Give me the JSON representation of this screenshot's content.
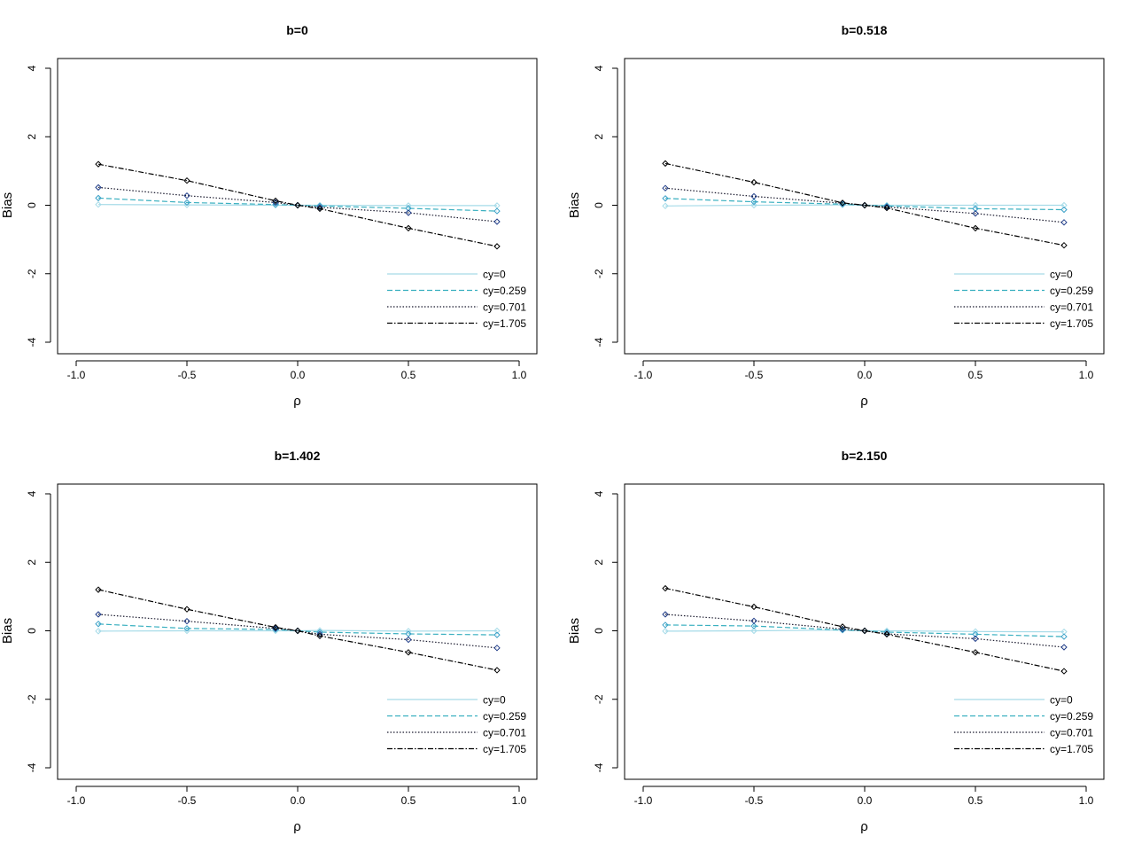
{
  "colors": {
    "cy0": "#a6dbe8",
    "cy0_259": "#3ab0c0",
    "cy0_701": "#1a1a2e",
    "cy1_705": "#000000",
    "axis": "#000000"
  },
  "chart_data": [
    {
      "type": "line",
      "title": "b=0",
      "xlabel": "ρ",
      "ylabel": "Bias",
      "xlim": [
        -1.0,
        1.0
      ],
      "ylim": [
        -4,
        4
      ],
      "x_ticks": [
        "-1.0",
        "-0.5",
        "0.0",
        "0.5",
        "1.0"
      ],
      "y_ticks": [
        "-4",
        "-2",
        "0",
        "2",
        "4"
      ],
      "x": [
        -0.9,
        -0.5,
        -0.1,
        0,
        0.1,
        0.5,
        0.9
      ],
      "legend_position": "bottom-right",
      "series": [
        {
          "name": "cy=0",
          "values": [
            0.02,
            0.01,
            0.0,
            0.0,
            0.0,
            -0.01,
            -0.01
          ]
        },
        {
          "name": "cy=0.259",
          "values": [
            0.21,
            0.08,
            0.02,
            0.0,
            -0.02,
            -0.09,
            -0.17
          ]
        },
        {
          "name": "cy=0.701",
          "values": [
            0.52,
            0.28,
            0.08,
            0.0,
            -0.06,
            -0.22,
            -0.48
          ]
        },
        {
          "name": "cy=1.705",
          "values": [
            1.2,
            0.72,
            0.13,
            0.0,
            -0.1,
            -0.67,
            -1.2
          ]
        }
      ]
    },
    {
      "type": "line",
      "title": "b=0.518",
      "xlabel": "ρ",
      "ylabel": "Bias",
      "xlim": [
        -1.0,
        1.0
      ],
      "ylim": [
        -4,
        4
      ],
      "x_ticks": [
        "-1.0",
        "-0.5",
        "0.0",
        "0.5",
        "1.0"
      ],
      "y_ticks": [
        "-4",
        "-2",
        "0",
        "2",
        "4"
      ],
      "x": [
        -0.9,
        -0.5,
        -0.1,
        0,
        0.1,
        0.5,
        0.9
      ],
      "legend_position": "bottom-right",
      "series": [
        {
          "name": "cy=0",
          "values": [
            -0.02,
            0.0,
            0.01,
            0.0,
            0.0,
            0.0,
            0.0
          ]
        },
        {
          "name": "cy=0.259",
          "values": [
            0.2,
            0.1,
            0.03,
            0.0,
            -0.02,
            -0.1,
            -0.13
          ]
        },
        {
          "name": "cy=0.701",
          "values": [
            0.5,
            0.26,
            0.06,
            0.0,
            -0.05,
            -0.24,
            -0.5
          ]
        },
        {
          "name": "cy=1.705",
          "values": [
            1.22,
            0.67,
            0.07,
            0.0,
            -0.08,
            -0.67,
            -1.17
          ]
        }
      ]
    },
    {
      "type": "line",
      "title": "b=1.402",
      "xlabel": "ρ",
      "ylabel": "Bias",
      "xlim": [
        -1.0,
        1.0
      ],
      "ylim": [
        -4,
        4
      ],
      "x_ticks": [
        "-1.0",
        "-0.5",
        "0.0",
        "0.5",
        "1.0"
      ],
      "y_ticks": [
        "-4",
        "-2",
        "0",
        "2",
        "4"
      ],
      "x": [
        -0.9,
        -0.5,
        -0.1,
        0,
        0.1,
        0.5,
        0.9
      ],
      "legend_position": "bottom-right",
      "series": [
        {
          "name": "cy=0",
          "values": [
            -0.01,
            0.0,
            0.0,
            0.0,
            0.01,
            -0.01,
            0.0
          ]
        },
        {
          "name": "cy=0.259",
          "values": [
            0.2,
            0.07,
            0.04,
            0.0,
            -0.04,
            -0.09,
            -0.12
          ]
        },
        {
          "name": "cy=0.701",
          "values": [
            0.48,
            0.28,
            0.07,
            0.0,
            -0.1,
            -0.26,
            -0.5
          ]
        },
        {
          "name": "cy=1.705",
          "values": [
            1.2,
            0.63,
            0.1,
            0.0,
            -0.15,
            -0.63,
            -1.15
          ]
        }
      ]
    },
    {
      "type": "line",
      "title": "b=2.150",
      "xlabel": "ρ",
      "ylabel": "Bias",
      "xlim": [
        -1.0,
        1.0
      ],
      "ylim": [
        -4,
        4
      ],
      "x_ticks": [
        "-1.0",
        "-0.5",
        "0.0",
        "0.5",
        "1.0"
      ],
      "y_ticks": [
        "-4",
        "-2",
        "0",
        "2",
        "4"
      ],
      "x": [
        -0.9,
        -0.5,
        -0.1,
        0,
        0.1,
        0.5,
        0.9
      ],
      "legend_position": "bottom-right",
      "series": [
        {
          "name": "cy=0",
          "values": [
            -0.01,
            0.0,
            0.02,
            0.0,
            0.0,
            -0.02,
            -0.03
          ]
        },
        {
          "name": "cy=0.259",
          "values": [
            0.17,
            0.14,
            0.02,
            0.0,
            -0.04,
            -0.1,
            -0.17
          ]
        },
        {
          "name": "cy=0.701",
          "values": [
            0.48,
            0.29,
            0.05,
            0.0,
            -0.09,
            -0.23,
            -0.48
          ]
        },
        {
          "name": "cy=1.705",
          "values": [
            1.24,
            0.7,
            0.12,
            0.0,
            -0.1,
            -0.63,
            -1.18
          ]
        }
      ]
    }
  ]
}
